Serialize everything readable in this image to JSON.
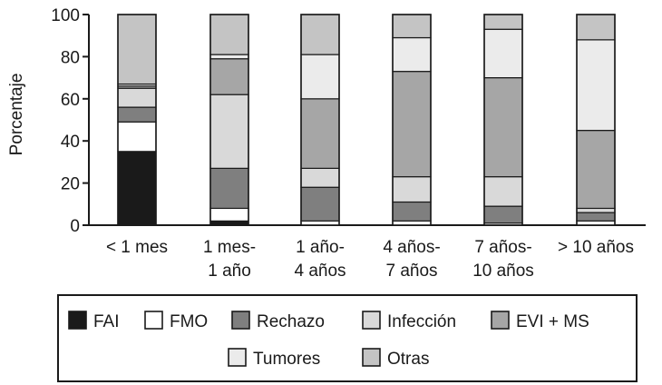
{
  "chart_data": {
    "type": "bar",
    "stacked": true,
    "ylabel": "Porcentaje",
    "xlabel": "",
    "ylim": [
      0,
      100
    ],
    "yticks": [
      0,
      20,
      40,
      60,
      80,
      100
    ],
    "categories": [
      [
        "< 1 mes"
      ],
      [
        "1 mes-",
        "1 año"
      ],
      [
        "1 año-",
        "4 años"
      ],
      [
        "4 años-",
        "7 años"
      ],
      [
        "7 años-",
        "10 años"
      ],
      [
        "> 10 años"
      ]
    ],
    "series": [
      {
        "name": "FAI",
        "color": "#1a1a1a",
        "values": [
          35,
          2,
          0,
          0,
          0,
          0
        ]
      },
      {
        "name": "FMO",
        "color": "#ffffff",
        "values": [
          14,
          6,
          2,
          2,
          1,
          2
        ]
      },
      {
        "name": "Rechazo",
        "color": "#7f7f7f",
        "values": [
          7,
          19,
          16,
          9,
          8,
          4
        ]
      },
      {
        "name": "Infección",
        "color": "#d9d9d9",
        "values": [
          9,
          35,
          9,
          12,
          14,
          2
        ]
      },
      {
        "name": "EVI + MS",
        "color": "#a6a6a6",
        "values": [
          1,
          17,
          33,
          50,
          47,
          37
        ]
      },
      {
        "name": "Tumores",
        "color": "#ebebeb",
        "values": [
          1,
          2,
          21,
          16,
          23,
          43
        ]
      },
      {
        "name": "Otras",
        "color": "#c4c4c4",
        "values": [
          33,
          19,
          19,
          11,
          7,
          12
        ]
      }
    ],
    "legend": {
      "position": "bottom",
      "rows": [
        [
          0,
          1,
          2,
          3,
          4
        ],
        [
          5,
          6
        ]
      ]
    }
  }
}
